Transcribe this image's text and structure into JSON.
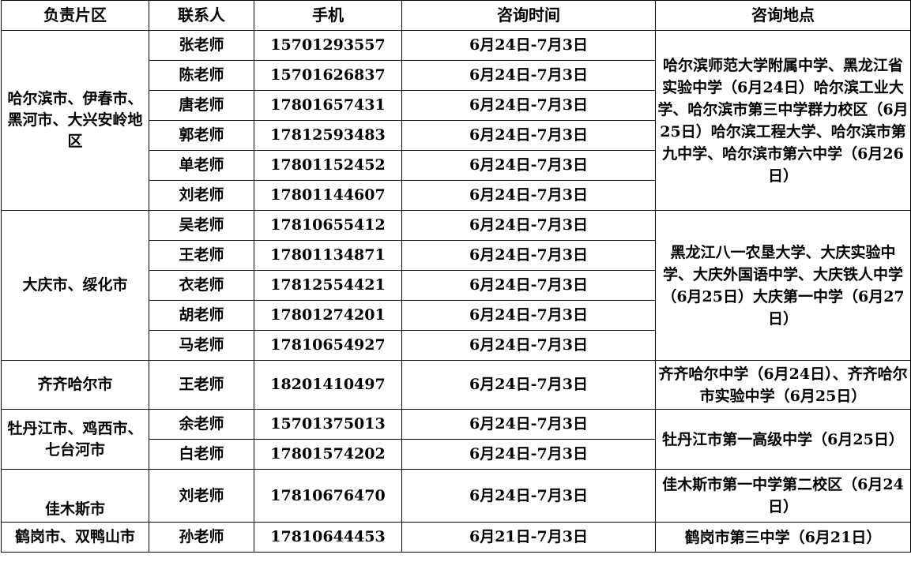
{
  "headers": [
    "负责片区",
    "联系人",
    "手机",
    "咨询时间",
    "咨询地点"
  ],
  "groups": [
    {
      "region": "哈尔滨市、伊春市、黑河市、大兴安岭地区",
      "location": "哈尔滨师范大学附属中学、黑龙江省实验中学（6月24日）哈尔滨工业大学、哈尔滨市第三中学群力校区（6月25日）哈尔滨工程大学、哈尔滨市第九中学、哈尔滨市第六中学（6月26日）",
      "rows": [
        {
          "name": "张老师",
          "phone": "15701293557",
          "time": "6月24日-7月3日"
        },
        {
          "name": "陈老师",
          "phone": "15701626837",
          "time": "6月24日-7月3日"
        },
        {
          "name": "唐老师",
          "phone": "17801657431",
          "time": "6月24日-7月3日"
        },
        {
          "name": "郭老师",
          "phone": "17812593483",
          "time": "6月24日-7月3日"
        },
        {
          "name": "单老师",
          "phone": "17801152452",
          "time": "6月24日-7月3日"
        },
        {
          "name": "刘老师",
          "phone": "17801144607",
          "time": "6月24日-7月3日"
        }
      ]
    },
    {
      "region": "大庆市、绥化市",
      "location": "黑龙江八一农垦大学、大庆实验中学、大庆外国语中学、大庆铁人中学（6月25日）大庆第一中学（6月27日）",
      "rows": [
        {
          "name": "吴老师",
          "phone": "17810655412",
          "time": "6月24日-7月3日"
        },
        {
          "name": "王老师",
          "phone": "17801134871",
          "time": "6月24日-7月3日"
        },
        {
          "name": "衣老师",
          "phone": "17812554421",
          "time": "6月24日-7月3日"
        },
        {
          "name": "胡老师",
          "phone": "17801274201",
          "time": "6月24日-7月3日"
        },
        {
          "name": "马老师",
          "phone": "17810654927",
          "time": "6月24日-7月3日"
        }
      ]
    },
    {
      "region": "齐齐哈尔市",
      "location": "齐齐哈尔中学（6月24日）、齐齐哈尔市实验中学（6月25日）",
      "rows": [
        {
          "name": "王老师",
          "phone": "18201410497",
          "time": "6月24日-7月3日"
        }
      ]
    },
    {
      "region": "牡丹江市、鸡西市、七台河市",
      "location": "牡丹江市第一高级中学（6月25日）",
      "rows": [
        {
          "name": "余老师",
          "phone": "15701375013",
          "time": "6月24日-7月3日"
        },
        {
          "name": "白老师",
          "phone": "17801574202",
          "time": "6月24日-7月3日"
        }
      ]
    },
    {
      "region": "佳木斯市",
      "location": "佳木斯市第一中学第二校区（6月24日）",
      "rows": [
        {
          "name": "刘老师",
          "phone": "17810676470",
          "time": "6月24日-7月3日"
        }
      ]
    },
    {
      "region": "鹤岗市、双鸭山市",
      "location": "鹤岗市第三中学（6月21日）",
      "rows": [
        {
          "name": "孙老师",
          "phone": "17810644453",
          "time": "6月21日-7月3日"
        }
      ]
    }
  ]
}
